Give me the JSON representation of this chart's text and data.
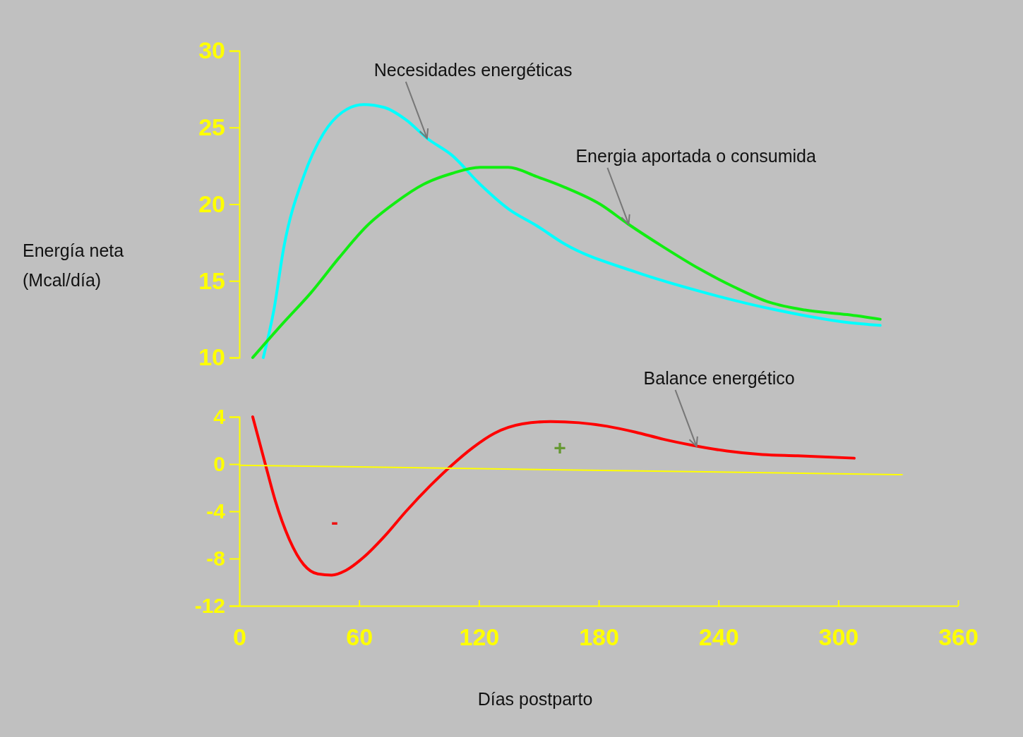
{
  "chart_data": [
    {
      "type": "line",
      "ylabel": "Energía neta\n(Mcal/día)",
      "xlim": [
        0,
        360
      ],
      "ylim": [
        10,
        30
      ],
      "yticks": [
        10,
        15,
        20,
        25,
        30
      ],
      "tick_labels": "y",
      "grid": false,
      "marker": "none",
      "line_style": "solid",
      "annotations": [
        {
          "text": "Necesidades energéticas",
          "x": 94,
          "y": 24.3
        },
        {
          "text": "Energia aportada o consumida",
          "x": 195,
          "y": 18.7
        }
      ],
      "series": [
        {
          "color": "#00ffff",
          "x": [
            12,
            17.3,
            22.3,
            32.2,
            42.1,
            51.6,
            62.2,
            72.8,
            83.5,
            94,
            106.4,
            120.6,
            134.7,
            148.9,
            163,
            198,
            234,
            269,
            304,
            321
          ],
          "values": [
            10,
            13.1,
            17.2,
            21.8,
            24.6,
            26,
            26.5,
            26.3,
            25.5,
            24.3,
            23.2,
            21.3,
            19.7,
            18.6,
            17.4,
            15.6,
            14.2,
            13.1,
            12.3,
            12.1
          ]
        },
        {
          "color": "#11ee11",
          "x": [
            6.7,
            21.6,
            35.7,
            49.9,
            64,
            78.1,
            92.3,
            106.4,
            120.6,
            134.7,
            148.9,
            163,
            180.7,
            194.8,
            212.5,
            230.2,
            247.9,
            265.6,
            283.2,
            304.5,
            321
          ],
          "values": [
            10,
            12.2,
            14.2,
            16.5,
            18.6,
            20.1,
            21.3,
            22,
            22.4,
            22.4,
            21.8,
            21.1,
            20,
            18.7,
            17.2,
            15.8,
            14.6,
            13.6,
            13.1,
            12.8,
            12.5
          ]
        }
      ]
    },
    {
      "type": "line",
      "xlabel": "Días postparto",
      "xlim": [
        0,
        360
      ],
      "xticks": [
        0,
        60,
        120,
        180,
        240,
        300,
        360
      ],
      "ylim": [
        -12,
        4
      ],
      "yticks": [
        4,
        0,
        -4,
        -8,
        -12
      ],
      "grid": false,
      "marker": "none",
      "line_style": "solid",
      "annotations": [
        {
          "text": "Balance energético",
          "x": 229,
          "y": 1.5
        },
        "-",
        "+"
      ],
      "series": [
        {
          "color": "#ff0000",
          "x": [
            6.7,
            12.7,
            18,
            25.1,
            32.2,
            39.3,
            46.3,
            53.4,
            62.2,
            72.8,
            83.5,
            95.8,
            106.4,
            117,
            127.7,
            141.8,
            155.9,
            170.1,
            184.2,
            198.4,
            212.5,
            226.7,
            244.3,
            261.9,
            279.7,
            308
          ],
          "values": [
            4,
            0.2,
            -3.1,
            -6.4,
            -8.5,
            -9.3,
            -9.4,
            -9,
            -7.9,
            -6.1,
            -4,
            -1.8,
            -0.1,
            1.4,
            2.6,
            3.4,
            3.6,
            3.5,
            3.2,
            2.7,
            2.1,
            1.6,
            1.1,
            0.8,
            0.7,
            0.5
          ]
        },
        {
          "color": "#ffff00",
          "x": [
            0,
            332
          ],
          "values": [
            -0.1,
            -0.9
          ]
        }
      ]
    }
  ]
}
